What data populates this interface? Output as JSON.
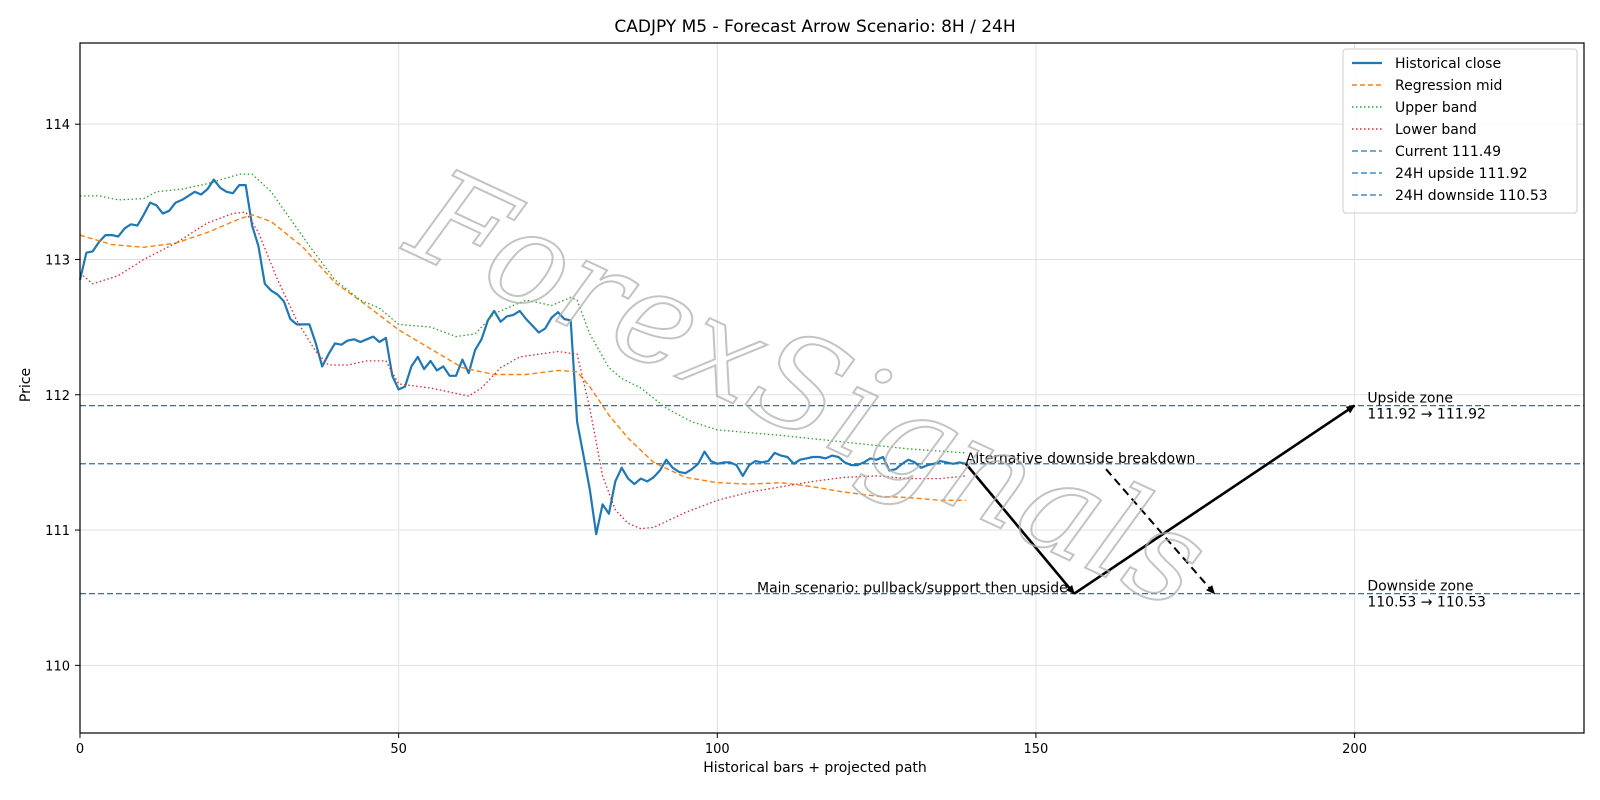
{
  "chart_data": {
    "type": "line",
    "title": "CADJPY M5 - Forecast Arrow Scenario: 8H / 24H",
    "xlabel": "Historical bars + projected path",
    "ylabel": "Price",
    "xlim": [
      0,
      236
    ],
    "ylim": [
      109.5,
      114.6
    ],
    "x_ticks": [
      0,
      50,
      100,
      150,
      200
    ],
    "y_ticks": [
      110,
      111,
      112,
      113,
      114
    ],
    "grid": true,
    "legend_position": "top-right",
    "colors": {
      "historical": "#1f77b4",
      "regression": "#ff7f0e",
      "upper": "#2ca02c",
      "lower": "#d62728",
      "hline": "#1f77b4",
      "arrow": "#000000"
    },
    "series": [
      {
        "name": "Historical close",
        "style": "solid",
        "points": [
          [
            0,
            112.85
          ],
          [
            1,
            113.05
          ],
          [
            2,
            113.06
          ],
          [
            3,
            113.13
          ],
          [
            4,
            113.18
          ],
          [
            5,
            113.18
          ],
          [
            6,
            113.17
          ],
          [
            7,
            113.23
          ],
          [
            8,
            113.26
          ],
          [
            9,
            113.25
          ],
          [
            10,
            113.33
          ],
          [
            11,
            113.42
          ],
          [
            12,
            113.4
          ],
          [
            13,
            113.34
          ],
          [
            14,
            113.36
          ],
          [
            15,
            113.42
          ],
          [
            16,
            113.44
          ],
          [
            17,
            113.47
          ],
          [
            18,
            113.5
          ],
          [
            19,
            113.48
          ],
          [
            20,
            113.52
          ],
          [
            21,
            113.59
          ],
          [
            22,
            113.53
          ],
          [
            23,
            113.5
          ],
          [
            24,
            113.49
          ],
          [
            25,
            113.55
          ],
          [
            26,
            113.55
          ],
          [
            27,
            113.25
          ],
          [
            28,
            113.1
          ],
          [
            29,
            112.82
          ],
          [
            30,
            112.77
          ],
          [
            31,
            112.74
          ],
          [
            32,
            112.69
          ],
          [
            33,
            112.56
          ],
          [
            34,
            112.52
          ],
          [
            35,
            112.52
          ],
          [
            36,
            112.52
          ],
          [
            37,
            112.38
          ],
          [
            38,
            112.21
          ],
          [
            39,
            112.3
          ],
          [
            40,
            112.38
          ],
          [
            41,
            112.37
          ],
          [
            42,
            112.4
          ],
          [
            43,
            112.41
          ],
          [
            44,
            112.39
          ],
          [
            45,
            112.41
          ],
          [
            46,
            112.43
          ],
          [
            47,
            112.39
          ],
          [
            48,
            112.42
          ],
          [
            49,
            112.14
          ],
          [
            50,
            112.04
          ],
          [
            51,
            112.06
          ],
          [
            52,
            112.21
          ],
          [
            53,
            112.28
          ],
          [
            54,
            112.19
          ],
          [
            55,
            112.25
          ],
          [
            56,
            112.18
          ],
          [
            57,
            112.21
          ],
          [
            58,
            112.14
          ],
          [
            59,
            112.14
          ],
          [
            60,
            112.26
          ],
          [
            61,
            112.16
          ],
          [
            62,
            112.33
          ],
          [
            63,
            112.41
          ],
          [
            64,
            112.55
          ],
          [
            65,
            112.62
          ],
          [
            66,
            112.54
          ],
          [
            67,
            112.58
          ],
          [
            68,
            112.59
          ],
          [
            69,
            112.62
          ],
          [
            70,
            112.56
          ],
          [
            71,
            112.51
          ],
          [
            72,
            112.46
          ],
          [
            73,
            112.49
          ],
          [
            74,
            112.57
          ],
          [
            75,
            112.61
          ],
          [
            76,
            112.56
          ],
          [
            77,
            112.55
          ],
          [
            78,
            111.8
          ],
          [
            79,
            111.55
          ],
          [
            80,
            111.3
          ],
          [
            81,
            110.97
          ],
          [
            82,
            111.19
          ],
          [
            83,
            111.12
          ],
          [
            84,
            111.36
          ],
          [
            85,
            111.46
          ],
          [
            86,
            111.38
          ],
          [
            87,
            111.34
          ],
          [
            88,
            111.38
          ],
          [
            89,
            111.36
          ],
          [
            90,
            111.39
          ],
          [
            91,
            111.44
          ],
          [
            92,
            111.52
          ],
          [
            93,
            111.46
          ],
          [
            94,
            111.43
          ],
          [
            95,
            111.42
          ],
          [
            96,
            111.45
          ],
          [
            97,
            111.49
          ],
          [
            98,
            111.58
          ],
          [
            99,
            111.51
          ],
          [
            100,
            111.49
          ],
          [
            101,
            111.5
          ],
          [
            102,
            111.5
          ],
          [
            103,
            111.48
          ],
          [
            104,
            111.4
          ],
          [
            105,
            111.48
          ],
          [
            106,
            111.51
          ],
          [
            107,
            111.5
          ],
          [
            108,
            111.51
          ],
          [
            109,
            111.57
          ],
          [
            110,
            111.55
          ],
          [
            111,
            111.54
          ],
          [
            112,
            111.49
          ],
          [
            113,
            111.52
          ],
          [
            114,
            111.53
          ],
          [
            115,
            111.54
          ],
          [
            116,
            111.54
          ],
          [
            117,
            111.53
          ],
          [
            118,
            111.55
          ],
          [
            119,
            111.54
          ],
          [
            120,
            111.5
          ],
          [
            121,
            111.48
          ],
          [
            122,
            111.48
          ],
          [
            123,
            111.5
          ],
          [
            124,
            111.53
          ],
          [
            125,
            111.52
          ],
          [
            126,
            111.54
          ],
          [
            127,
            111.44
          ],
          [
            128,
            111.45
          ],
          [
            129,
            111.49
          ],
          [
            130,
            111.52
          ],
          [
            131,
            111.5
          ],
          [
            132,
            111.46
          ],
          [
            133,
            111.48
          ],
          [
            134,
            111.49
          ],
          [
            135,
            111.51
          ],
          [
            136,
            111.5
          ],
          [
            137,
            111.49
          ],
          [
            138,
            111.5
          ],
          [
            139,
            111.49
          ]
        ]
      },
      {
        "name": "Regression mid",
        "style": "dashed",
        "points": [
          [
            0,
            113.18
          ],
          [
            5,
            113.11
          ],
          [
            10,
            113.09
          ],
          [
            15,
            113.12
          ],
          [
            20,
            113.2
          ],
          [
            25,
            113.3
          ],
          [
            27,
            113.33
          ],
          [
            30,
            113.28
          ],
          [
            35,
            113.09
          ],
          [
            40,
            112.83
          ],
          [
            45,
            112.66
          ],
          [
            50,
            112.48
          ],
          [
            55,
            112.34
          ],
          [
            60,
            112.2
          ],
          [
            65,
            112.15
          ],
          [
            70,
            112.15
          ],
          [
            75,
            112.18
          ],
          [
            78,
            112.17
          ],
          [
            80,
            112.06
          ],
          [
            83,
            111.85
          ],
          [
            86,
            111.68
          ],
          [
            90,
            111.5
          ],
          [
            95,
            111.39
          ],
          [
            100,
            111.35
          ],
          [
            105,
            111.34
          ],
          [
            110,
            111.35
          ],
          [
            115,
            111.32
          ],
          [
            120,
            111.28
          ],
          [
            125,
            111.25
          ],
          [
            130,
            111.24
          ],
          [
            135,
            111.22
          ],
          [
            139,
            111.22
          ]
        ]
      },
      {
        "name": "Upper band",
        "style": "dotted",
        "points": [
          [
            0,
            113.47
          ],
          [
            3,
            113.47
          ],
          [
            6,
            113.44
          ],
          [
            10,
            113.45
          ],
          [
            12,
            113.5
          ],
          [
            16,
            113.52
          ],
          [
            20,
            113.56
          ],
          [
            25,
            113.63
          ],
          [
            27,
            113.63
          ],
          [
            30,
            113.5
          ],
          [
            33,
            113.3
          ],
          [
            36,
            113.1
          ],
          [
            40,
            112.85
          ],
          [
            44,
            112.7
          ],
          [
            47,
            112.64
          ],
          [
            50,
            112.52
          ],
          [
            55,
            112.5
          ],
          [
            59,
            112.43
          ],
          [
            62,
            112.45
          ],
          [
            65,
            112.6
          ],
          [
            70,
            112.7
          ],
          [
            74,
            112.66
          ],
          [
            77,
            112.72
          ],
          [
            78,
            112.7
          ],
          [
            80,
            112.45
          ],
          [
            83,
            112.2
          ],
          [
            85,
            112.12
          ],
          [
            88,
            112.05
          ],
          [
            92,
            111.9
          ],
          [
            96,
            111.8
          ],
          [
            100,
            111.74
          ],
          [
            110,
            111.7
          ],
          [
            120,
            111.65
          ],
          [
            130,
            111.6
          ],
          [
            139,
            111.57
          ]
        ]
      },
      {
        "name": "Lower band",
        "style": "dotted",
        "points": [
          [
            0,
            112.9
          ],
          [
            2,
            112.82
          ],
          [
            6,
            112.88
          ],
          [
            10,
            113.0
          ],
          [
            15,
            113.12
          ],
          [
            20,
            113.27
          ],
          [
            24,
            113.34
          ],
          [
            26,
            113.35
          ],
          [
            28,
            113.2
          ],
          [
            31,
            112.85
          ],
          [
            34,
            112.55
          ],
          [
            37,
            112.32
          ],
          [
            39,
            112.22
          ],
          [
            42,
            112.22
          ],
          [
            45,
            112.25
          ],
          [
            48,
            112.25
          ],
          [
            50,
            112.08
          ],
          [
            55,
            112.05
          ],
          [
            59,
            112.01
          ],
          [
            61,
            111.99
          ],
          [
            63,
            112.05
          ],
          [
            66,
            112.2
          ],
          [
            69,
            112.28
          ],
          [
            72,
            112.3
          ],
          [
            75,
            112.32
          ],
          [
            78,
            112.3
          ],
          [
            80,
            111.9
          ],
          [
            82,
            111.4
          ],
          [
            84,
            111.15
          ],
          [
            86,
            111.05
          ],
          [
            88,
            111.01
          ],
          [
            90,
            111.02
          ],
          [
            95,
            111.13
          ],
          [
            100,
            111.22
          ],
          [
            105,
            111.28
          ],
          [
            110,
            111.32
          ],
          [
            115,
            111.36
          ],
          [
            120,
            111.39
          ],
          [
            125,
            111.4
          ],
          [
            130,
            111.38
          ],
          [
            135,
            111.38
          ],
          [
            139,
            111.4
          ]
        ]
      }
    ],
    "hlines": [
      {
        "name": "Current 111.49",
        "value": 111.49
      },
      {
        "name": "24H upside 111.92",
        "value": 111.92
      },
      {
        "name": "24H downside 110.53",
        "value": 110.53
      }
    ],
    "arrows": [
      {
        "from": [
          139,
          111.49
        ],
        "to": [
          156,
          110.53
        ],
        "style": "solid"
      },
      {
        "from": [
          156,
          110.53
        ],
        "to": [
          200,
          111.92
        ],
        "style": "solid"
      },
      {
        "from": [
          161,
          111.45
        ],
        "to": [
          178,
          110.53
        ],
        "style": "dashed"
      }
    ],
    "annotations": [
      {
        "text": "Alternative downside breakdown",
        "x": 139,
        "y": 111.49,
        "anchor": "start"
      },
      {
        "text": "Main scenario: pullback/support then upside",
        "x": 155,
        "y": 110.53,
        "anchor": "end"
      },
      {
        "text": "Upside zone",
        "x": 202,
        "y": 111.92,
        "line2": "111.92 → 111.92",
        "anchor": "start"
      },
      {
        "text": "Downside zone",
        "x": 202,
        "y": 110.53,
        "line2": "110.53 → 110.53",
        "anchor": "start"
      }
    ],
    "watermark": "ForexSignals"
  }
}
